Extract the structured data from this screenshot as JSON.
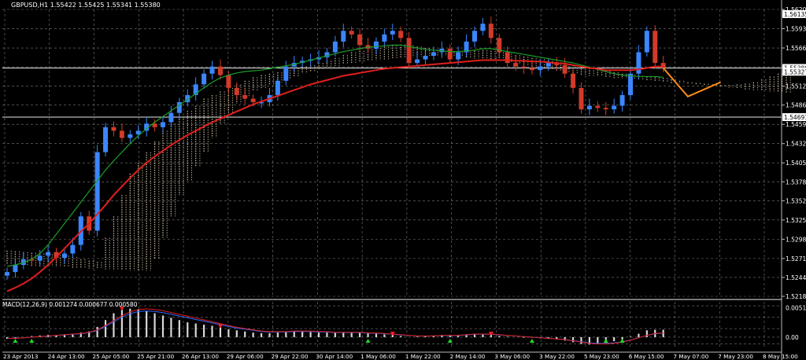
{
  "chart_data": {
    "type": "line",
    "title": "GBPUSD,H1  1.55422 1.55425 1.55341 1.55380",
    "colors": {
      "background": "#000000",
      "grid": "#7a7a7a",
      "bull_candle": "#3b86ff",
      "bear_candle": "#d23a2a",
      "ma_slow": "#e0201c",
      "ma_fast": "#1a9e28",
      "cloud": "#d9c7a8",
      "projection": "#ff8c1a",
      "macd_signal": "#e0201c",
      "macd_main": "#3366ff",
      "arrow_up": "#22dd22",
      "arrow_down": "#ff2020"
    },
    "price_axis": {
      "ticks": [
        "1.56200",
        "1.55930",
        "1.55660",
        "1.55395",
        "1.55125",
        "1.54860",
        "1.54590",
        "1.54320",
        "1.54050",
        "1.53785",
        "1.53520",
        "1.53250",
        "1.52980",
        "1.52710",
        "1.52445",
        "1.52180"
      ],
      "ylim": [
        1.5218,
        1.562
      ]
    },
    "price_labels": [
      {
        "text": "1.56135",
        "value": 1.56135
      },
      {
        "text": "1.55380",
        "value": 1.5538
      },
      {
        "text": "1.55327",
        "value": 1.55327
      },
      {
        "text": "1.54691",
        "value": 1.54691
      }
    ],
    "horizontal_lines": [
      1.5538,
      1.54691
    ],
    "time_axis": [
      "23 Apr 2013",
      "24 Apr 13:00",
      "25 Apr 05:00",
      "25 Apr 21:00",
      "26 Apr 13:00",
      "29 Apr 06:00",
      "29 Apr 22:00",
      "30 Apr 14:00",
      "1 May 06:00",
      "1 May 22:00",
      "2 May 14:00",
      "3 May 06:00",
      "3 May 22:00",
      "5 May 23:00",
      "6 May 15:00",
      "7 May 07:00",
      "7 May 23:00",
      "8 May 15:00"
    ],
    "close": [
      1.5252,
      1.5262,
      1.527,
      1.5268,
      1.5275,
      1.528,
      1.5272,
      1.5278,
      1.529,
      1.533,
      1.531,
      1.542,
      1.5455,
      1.545,
      1.544,
      1.5445,
      1.545,
      1.546,
      1.5455,
      1.5462,
      1.5475,
      1.549,
      1.55,
      1.5515,
      1.553,
      1.554,
      1.5528,
      1.551,
      1.55,
      1.5495,
      1.549,
      1.549,
      1.55,
      1.552,
      1.554,
      1.5545,
      1.5548,
      1.555,
      1.5553,
      1.556,
      1.5575,
      1.559,
      1.5585,
      1.557,
      1.5565,
      1.5575,
      1.5585,
      1.559,
      1.558,
      1.5545,
      1.555,
      1.5555,
      1.556,
      1.5565,
      1.555,
      1.556,
      1.5575,
      1.559,
      1.56,
      1.558,
      1.556,
      1.5545,
      1.554,
      1.5538,
      1.5535,
      1.554,
      1.5545,
      1.5542,
      1.553,
      1.551,
      1.548,
      1.5485,
      1.5482,
      1.548,
      1.5485,
      1.55,
      1.553,
      1.556,
      1.559,
      1.5545,
      1.5538
    ],
    "ma_slow": [
      1.5225,
      1.523,
      1.5236,
      1.5243,
      1.5252,
      1.5262,
      1.5273,
      1.5285,
      1.5297,
      1.5309,
      1.532,
      1.5333,
      1.5346,
      1.536,
      1.5372,
      1.5384,
      1.5395,
      1.5405,
      1.5414,
      1.5422,
      1.543,
      1.5437,
      1.5444,
      1.545,
      1.5456,
      1.5462,
      1.5467,
      1.5472,
      1.5477,
      1.5482,
      1.5487,
      1.5491,
      1.5495,
      1.5499,
      1.5503,
      1.5507,
      1.5511,
      1.5515,
      1.5518,
      1.5521,
      1.5524,
      1.5527,
      1.5529,
      1.5531,
      1.5533,
      1.5535,
      1.5537,
      1.5538,
      1.5539,
      1.554,
      1.5541,
      1.5542,
      1.5543,
      1.5544,
      1.5545,
      1.5546,
      1.5547,
      1.5548,
      1.5549,
      1.5549,
      1.5549,
      1.5549,
      1.5548,
      1.5548,
      1.5547,
      1.5547,
      1.5546,
      1.5545,
      1.5544,
      1.5542,
      1.554,
      1.5538,
      1.5537,
      1.5535,
      1.5535,
      1.5535,
      1.5535,
      1.5536,
      1.5538,
      1.554,
      1.554
    ],
    "ma_fast": [
      1.526,
      1.5262,
      1.5265,
      1.527,
      1.5278,
      1.529,
      1.5305,
      1.532,
      1.5335,
      1.535,
      1.5365,
      1.538,
      1.5395,
      1.5408,
      1.542,
      1.5432,
      1.5443,
      1.5453,
      1.5462,
      1.547,
      1.5478,
      1.5486,
      1.5494,
      1.5502,
      1.551,
      1.5518,
      1.5524,
      1.5528,
      1.5531,
      1.5533,
      1.5534,
      1.5535,
      1.5537,
      1.5539,
      1.5541,
      1.5543,
      1.5546,
      1.5549,
      1.5552,
      1.5555,
      1.5558,
      1.5561,
      1.5563,
      1.5565,
      1.5567,
      1.5568,
      1.5569,
      1.557,
      1.557,
      1.5568,
      1.5566,
      1.5564,
      1.5563,
      1.5562,
      1.5561,
      1.5561,
      1.5562,
      1.5563,
      1.5565,
      1.5565,
      1.5563,
      1.5561,
      1.5559,
      1.5557,
      1.5555,
      1.5553,
      1.5551,
      1.5549,
      1.5547,
      1.5545,
      1.5542,
      1.5539,
      1.5536,
      1.5533,
      1.553,
      1.5528,
      1.5527,
      1.5526,
      1.5526,
      1.5526,
      1.5525
    ],
    "cloud_top": [
      1.5282,
      1.5281,
      1.528,
      1.5279,
      1.5278,
      1.5277,
      1.5276,
      1.5275,
      1.5273,
      1.527,
      1.5268,
      1.5266,
      1.53,
      1.533,
      1.536,
      1.539,
      1.5405,
      1.542,
      1.5435,
      1.545,
      1.546,
      1.547,
      1.5478,
      1.5485,
      1.5495,
      1.55,
      1.5505,
      1.551,
      1.5515,
      1.552,
      1.5525,
      1.5528,
      1.553,
      1.5532,
      1.5535,
      1.5538,
      1.554,
      1.5542,
      1.5545,
      1.5548,
      1.5552,
      1.5556,
      1.556,
      1.5562,
      1.5564,
      1.5566,
      1.5568,
      1.557,
      1.5571,
      1.557,
      1.5568,
      1.5566,
      1.5564,
      1.5562,
      1.556,
      1.556,
      1.5561,
      1.5562,
      1.5563,
      1.5562,
      1.556,
      1.5558,
      1.5556,
      1.5554,
      1.5552,
      1.555,
      1.5548,
      1.5546,
      1.5544,
      1.5542,
      1.554,
      1.5538,
      1.5536,
      1.5534,
      1.5532,
      1.553,
      1.5528,
      1.5527,
      1.5526,
      1.5525,
      1.5524,
      1.5522,
      1.552,
      1.5518,
      1.5517,
      1.5516,
      1.5515,
      1.5514,
      1.5514,
      1.5515,
      1.5516,
      1.5518,
      1.5522,
      1.5526,
      1.553,
      1.5535
    ],
    "cloud_bottom": [
      1.5262,
      1.5262,
      1.5261,
      1.5261,
      1.526,
      1.526,
      1.5259,
      1.5259,
      1.5258,
      1.5258,
      1.5257,
      1.5257,
      1.5256,
      1.5256,
      1.5255,
      1.5254,
      1.5253,
      1.5254,
      1.527,
      1.53,
      1.533,
      1.536,
      1.538,
      1.54,
      1.542,
      1.544,
      1.546,
      1.5475,
      1.5488,
      1.5498,
      1.5505,
      1.551,
      1.5514,
      1.5518,
      1.5522,
      1.5526,
      1.553,
      1.5533,
      1.5536,
      1.5539,
      1.5541,
      1.5543,
      1.5545,
      1.5546,
      1.5548,
      1.5549,
      1.555,
      1.5551,
      1.5552,
      1.5553,
      1.5554,
      1.5555,
      1.5555,
      1.5555,
      1.5554,
      1.5553,
      1.5552,
      1.5551,
      1.555,
      1.5549,
      1.5548,
      1.5546,
      1.5544,
      1.5542,
      1.554,
      1.5538,
      1.5536,
      1.5534,
      1.5532,
      1.553,
      1.5528,
      1.5527,
      1.5526,
      1.5525,
      1.5524,
      1.5523,
      1.5522,
      1.5521,
      1.552,
      1.5519,
      1.5518,
      1.5517,
      1.5516,
      1.5515,
      1.5514,
      1.5513,
      1.5512,
      1.5511,
      1.551,
      1.5509,
      1.5508,
      1.5507,
      1.5506,
      1.5505,
      1.5504,
      1.5503
    ],
    "projection": [
      [
        80,
        1.5538
      ],
      [
        83,
        1.5498
      ],
      [
        87,
        1.5518
      ]
    ],
    "macd": {
      "label": "MACD(12,26,9) 0.001274 0.000677 0.000580",
      "ticks": [
        "0.005184",
        "0.00"
      ],
      "ylim": [
        -0.0018,
        0.0062
      ],
      "histogram": [
        -0.0003,
        -0.0002,
        0.0,
        0.0002,
        0.0003,
        0.0004,
        0.0004,
        0.0005,
        0.0006,
        0.0008,
        0.001,
        0.0018,
        0.003,
        0.0042,
        0.0048,
        0.005,
        0.0049,
        0.0046,
        0.0042,
        0.0038,
        0.0034,
        0.003,
        0.0026,
        0.0024,
        0.0022,
        0.002,
        0.0017,
        0.0014,
        0.0012,
        0.001,
        0.0008,
        0.0007,
        0.0007,
        0.0008,
        0.0009,
        0.001,
        0.001,
        0.0009,
        0.0008,
        0.0008,
        0.0008,
        0.0009,
        0.0009,
        0.0008,
        0.0007,
        0.0006,
        0.0005,
        0.0004,
        0.0002,
        0.0,
        0.0001,
        0.0002,
        0.0003,
        0.0003,
        0.0003,
        0.0004,
        0.0005,
        0.0006,
        0.0006,
        0.0004,
        0.0002,
        0.0001,
        0.0,
        -0.0001,
        -0.0001,
        -0.0002,
        -0.0003,
        -0.0004,
        -0.0006,
        -0.0009,
        -0.0012,
        -0.0013,
        -0.0012,
        -0.001,
        -0.0007,
        -0.0004,
        0.0001,
        0.0006,
        0.0012,
        0.0013,
        0.0013
      ],
      "signal": [
        -0.0002,
        -0.0002,
        -0.0001,
        0.0,
        0.0001,
        0.0002,
        0.0003,
        0.0004,
        0.0005,
        0.0006,
        0.0008,
        0.0012,
        0.0019,
        0.0027,
        0.0035,
        0.0041,
        0.0045,
        0.0046,
        0.0045,
        0.0043,
        0.004,
        0.0037,
        0.0034,
        0.0031,
        0.0028,
        0.0025,
        0.0022,
        0.0019,
        0.0016,
        0.0014,
        0.0012,
        0.001,
        0.0009,
        0.0009,
        0.0009,
        0.001,
        0.001,
        0.001,
        0.0009,
        0.0009,
        0.0008,
        0.0008,
        0.0008,
        0.0008,
        0.0007,
        0.0007,
        0.0006,
        0.0005,
        0.0004,
        0.0003,
        0.0002,
        0.0002,
        0.0002,
        0.0003,
        0.0003,
        0.0003,
        0.0004,
        0.0005,
        0.0005,
        0.0005,
        0.0004,
        0.0003,
        0.0002,
        0.0001,
        0.0,
        -0.0001,
        -0.0002,
        -0.0003,
        -0.0004,
        -0.0006,
        -0.0008,
        -0.001,
        -0.0011,
        -0.0011,
        -0.001,
        -0.0008,
        -0.0005,
        -0.0001,
        0.0003,
        0.0006,
        0.0007
      ],
      "arrows_up": [
        1,
        3,
        44,
        54,
        64,
        73,
        75
      ],
      "arrows_down": [
        14,
        26,
        47,
        59
      ]
    }
  }
}
